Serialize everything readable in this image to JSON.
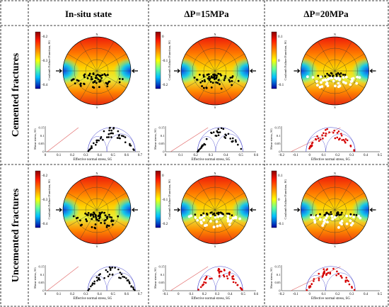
{
  "columns": [
    "In-situ state",
    "ΔP=15MPa",
    "ΔP=20MPa"
  ],
  "rows": [
    "Cemented fractures",
    "Uncemented fractures"
  ],
  "colorbar_label": "Coulomb Failure Function, SG",
  "stereonet": {
    "north_label": "N",
    "south_label": "S"
  },
  "mohr_axes": {
    "xlabel": "Effective normal stress, SG",
    "ylabel": "Shear stress, SG"
  },
  "panels": [
    {
      "row": 0,
      "col": 0,
      "colorbar_ticks": [
        "-0.2",
        "-0.3",
        "-0.4"
      ],
      "mohr_xticks": [
        "0",
        "0.1",
        "0.2",
        "0.3",
        "0.4",
        "0.5",
        "0.6",
        "0.7"
      ],
      "mohr_yticks": [
        "0.15",
        "0.1",
        "0.05",
        "0"
      ],
      "points_color": "#000000"
    },
    {
      "row": 0,
      "col": 1,
      "colorbar_ticks": [
        "0",
        "-0.1",
        "-0.2"
      ],
      "mohr_xticks": [
        "0",
        "0.1",
        "0.2",
        "0.3",
        "0.4",
        "0.5",
        "0.6"
      ],
      "mohr_yticks": [
        "0.15",
        "0.1",
        "0.05",
        "0"
      ],
      "points_color": "#000000"
    },
    {
      "row": 0,
      "col": 2,
      "colorbar_ticks": [
        "0.1",
        "0",
        "-0.1"
      ],
      "mohr_xticks": [
        "-0.2",
        "-0.1",
        "0",
        "0.1",
        "0.2",
        "0.3",
        "0.4",
        "0.5"
      ],
      "mohr_yticks": [
        "0.15",
        "0.1",
        "0.05",
        "0"
      ],
      "points_color": "#d40000"
    },
    {
      "row": 1,
      "col": 0,
      "colorbar_ticks": [
        "-0.2",
        "-0.3",
        "-0.4"
      ],
      "mohr_xticks": [
        "0",
        "0.1",
        "0.2",
        "0.3",
        "0.4",
        "0.5",
        "0.6",
        "0.7"
      ],
      "mohr_yticks": [
        "0.15",
        "0.1",
        "0.05",
        "0"
      ],
      "points_color": "#000000"
    },
    {
      "row": 1,
      "col": 1,
      "colorbar_ticks": [
        "0",
        "-0.1",
        "-0.2"
      ],
      "mohr_xticks": [
        "-0.1",
        "0",
        "0.1",
        "0.2",
        "0.3",
        "0.4",
        "0.5",
        "0.6"
      ],
      "mohr_yticks": [
        "0.15",
        "0.1",
        "0.05",
        "0"
      ],
      "points_color": "#d40000"
    },
    {
      "row": 1,
      "col": 2,
      "colorbar_ticks": [
        "0.1",
        "0",
        "-0.1"
      ],
      "mohr_xticks": [
        "-0.2",
        "-0.1",
        "0",
        "0.1",
        "0.2",
        "0.3",
        "0.4",
        "0.5"
      ],
      "mohr_yticks": [
        "0.15",
        "0.1",
        "0.05",
        "0"
      ],
      "points_color": "#d40000"
    }
  ]
}
